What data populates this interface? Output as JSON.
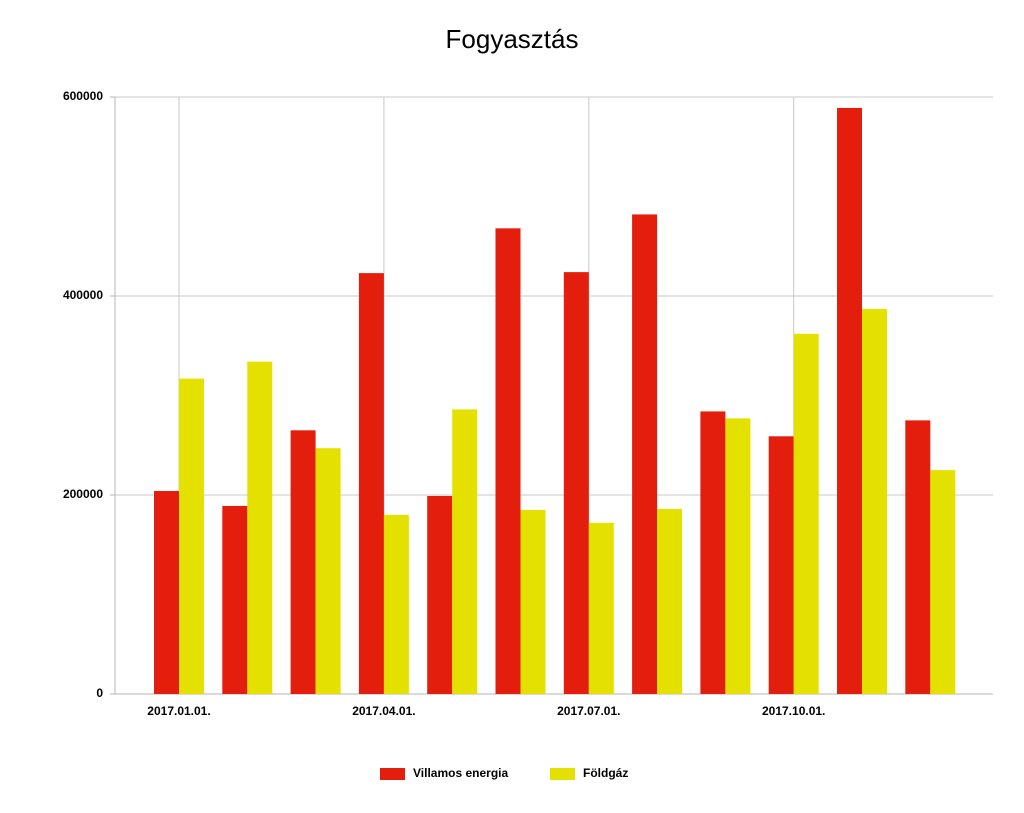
{
  "chart_data": {
    "type": "bar",
    "title": "Fogyasztás",
    "categories": [
      "2017.01.01.",
      null,
      null,
      "2017.04.01.",
      null,
      null,
      "2017.07.01.",
      null,
      null,
      "2017.10.01.",
      null,
      null
    ],
    "series": [
      {
        "name": "Villamos energia",
        "color": "#e41e0c",
        "values": [
          204000,
          189000,
          265000,
          423000,
          199000,
          468000,
          424000,
          482000,
          284000,
          259000,
          589000,
          275000
        ]
      },
      {
        "name": "Földgáz",
        "color": "#e4e000",
        "values": [
          317000,
          334000,
          247000,
          180000,
          286000,
          185000,
          172000,
          186000,
          277000,
          362000,
          387000,
          225000
        ]
      }
    ],
    "ylim": [
      0,
      600000
    ],
    "yticks": [
      0,
      200000,
      400000,
      600000
    ],
    "grid": true,
    "legend": "bottom"
  }
}
